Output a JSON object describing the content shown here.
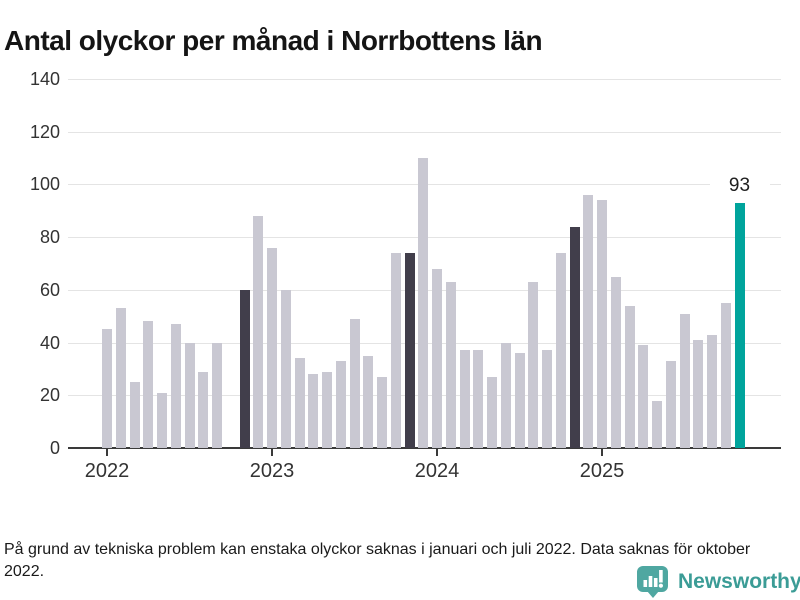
{
  "title": "Antal olyckor per månad i Norrbottens län",
  "footnote": "På grund av tekniska problem kan enstaka olyckor saknas i januari och juli 2022. Data saknas för oktober 2022.",
  "branding": {
    "name": "Newsworthy"
  },
  "colors": {
    "bar_light": "#c9c8d2",
    "bar_dark": "#413e4b",
    "bar_teal": "#00a49c",
    "gridline": "#e4e4e4",
    "axis": "#3a3a3a",
    "tick_text": "#333333",
    "logo_icon": "#4fa7a1",
    "logo_text": "#3b9c96"
  },
  "chart_data": {
    "type": "bar",
    "title": "Antal olyckor per månad i Norrbottens län",
    "xlabel": "",
    "ylabel": "",
    "ylim": [
      0,
      140
    ],
    "yticks": [
      0,
      20,
      40,
      60,
      80,
      100,
      120,
      140
    ],
    "xticks": [
      "2022",
      "2023",
      "2024",
      "2025"
    ],
    "grid": true,
    "legend": "none",
    "annotation": {
      "month": "2025-11",
      "label": "93"
    },
    "notes": "October 2022 missing; November bars of 2022-2024 highlighted dark; November 2025 highlighted teal",
    "points": [
      {
        "month": "2022-01",
        "value": 45,
        "c": "light"
      },
      {
        "month": "2022-02",
        "value": 53,
        "c": "light"
      },
      {
        "month": "2022-03",
        "value": 25,
        "c": "light"
      },
      {
        "month": "2022-04",
        "value": 48,
        "c": "light"
      },
      {
        "month": "2022-05",
        "value": 21,
        "c": "light"
      },
      {
        "month": "2022-06",
        "value": 47,
        "c": "light"
      },
      {
        "month": "2022-07",
        "value": 40,
        "c": "light"
      },
      {
        "month": "2022-08",
        "value": 29,
        "c": "light"
      },
      {
        "month": "2022-09",
        "value": 40,
        "c": "light"
      },
      {
        "month": "2022-10",
        "value": null,
        "c": "missing"
      },
      {
        "month": "2022-11",
        "value": 60,
        "c": "dark"
      },
      {
        "month": "2022-12",
        "value": 88,
        "c": "light"
      },
      {
        "month": "2023-01",
        "value": 76,
        "c": "light"
      },
      {
        "month": "2023-02",
        "value": 60,
        "c": "light"
      },
      {
        "month": "2023-03",
        "value": 34,
        "c": "light"
      },
      {
        "month": "2023-04",
        "value": 28,
        "c": "light"
      },
      {
        "month": "2023-05",
        "value": 29,
        "c": "light"
      },
      {
        "month": "2023-06",
        "value": 33,
        "c": "light"
      },
      {
        "month": "2023-07",
        "value": 49,
        "c": "light"
      },
      {
        "month": "2023-08",
        "value": 35,
        "c": "light"
      },
      {
        "month": "2023-09",
        "value": 27,
        "c": "light"
      },
      {
        "month": "2023-10",
        "value": 74,
        "c": "light"
      },
      {
        "month": "2023-11",
        "value": 74,
        "c": "dark"
      },
      {
        "month": "2023-12",
        "value": 110,
        "c": "light"
      },
      {
        "month": "2024-01",
        "value": 68,
        "c": "light"
      },
      {
        "month": "2024-02",
        "value": 63,
        "c": "light"
      },
      {
        "month": "2024-03",
        "value": 37,
        "c": "light"
      },
      {
        "month": "2024-04",
        "value": 37,
        "c": "light"
      },
      {
        "month": "2024-05",
        "value": 27,
        "c": "light"
      },
      {
        "month": "2024-06",
        "value": 40,
        "c": "light"
      },
      {
        "month": "2024-07",
        "value": 36,
        "c": "light"
      },
      {
        "month": "2024-08",
        "value": 63,
        "c": "light"
      },
      {
        "month": "2024-09",
        "value": 37,
        "c": "light"
      },
      {
        "month": "2024-10",
        "value": 74,
        "c": "light"
      },
      {
        "month": "2024-11",
        "value": 84,
        "c": "dark"
      },
      {
        "month": "2024-12",
        "value": 96,
        "c": "light"
      },
      {
        "month": "2025-01",
        "value": 94,
        "c": "light"
      },
      {
        "month": "2025-02",
        "value": 65,
        "c": "light"
      },
      {
        "month": "2025-03",
        "value": 54,
        "c": "light"
      },
      {
        "month": "2025-04",
        "value": 39,
        "c": "light"
      },
      {
        "month": "2025-05",
        "value": 18,
        "c": "light"
      },
      {
        "month": "2025-06",
        "value": 33,
        "c": "light"
      },
      {
        "month": "2025-07",
        "value": 51,
        "c": "light"
      },
      {
        "month": "2025-08",
        "value": 41,
        "c": "light"
      },
      {
        "month": "2025-09",
        "value": 43,
        "c": "light"
      },
      {
        "month": "2025-10",
        "value": 55,
        "c": "light"
      },
      {
        "month": "2025-11",
        "value": 93,
        "c": "teal"
      }
    ]
  }
}
